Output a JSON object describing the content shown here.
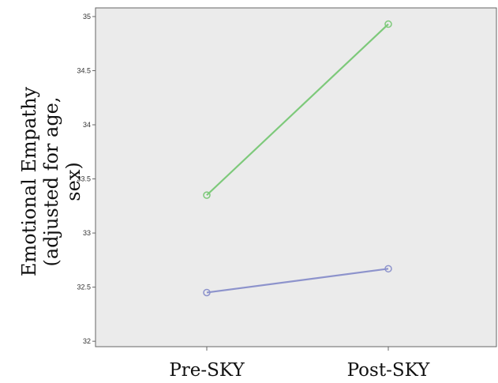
{
  "chart_data": {
    "type": "line",
    "title": "",
    "xlabel": "",
    "ylabel_lines": [
      "Emotional Empathy",
      "(adjusted for age,",
      "sex)"
    ],
    "categories": [
      "Pre-SKY",
      "Post-SKY"
    ],
    "ylim": [
      31.95,
      35.08
    ],
    "yticks": [
      32,
      32.5,
      33,
      33.5,
      34,
      34.5,
      35
    ],
    "ytick_labels": [
      "32",
      "32.5",
      "33",
      "33.5",
      "34",
      "34.5",
      "35"
    ],
    "grid": false,
    "legend": "none",
    "plot_background": "#ebebeb",
    "series": [
      {
        "values": [
          33.35,
          34.93
        ],
        "color": "#7dc97a"
      },
      {
        "values": [
          32.45,
          32.67
        ],
        "color": "#8d93cc"
      }
    ]
  }
}
